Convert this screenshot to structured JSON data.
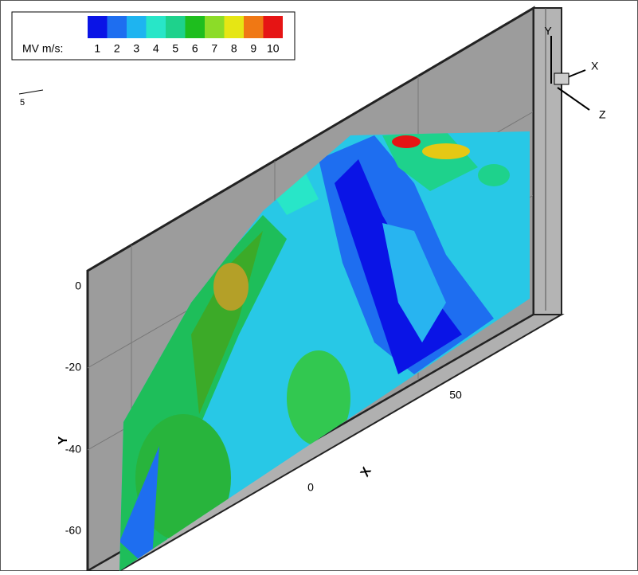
{
  "legend": {
    "label": "MV m/s:",
    "levels": [
      {
        "value": 1,
        "color": "#0a14e6"
      },
      {
        "value": 2,
        "color": "#1e6ef0"
      },
      {
        "value": 3,
        "color": "#1eb4f0"
      },
      {
        "value": 4,
        "color": "#28e6c8"
      },
      {
        "value": 5,
        "color": "#1ed28c"
      },
      {
        "value": 6,
        "color": "#1ebe1e"
      },
      {
        "value": 7,
        "color": "#8cdc28"
      },
      {
        "value": 8,
        "color": "#e6e614"
      },
      {
        "value": 9,
        "color": "#f07814"
      },
      {
        "value": 10,
        "color": "#e61414"
      }
    ]
  },
  "reference_vector": {
    "label": "5"
  },
  "axes": {
    "y_label": "Y",
    "x_label": "X",
    "y_ticks": [
      0,
      -20,
      -40,
      -60
    ],
    "x_ticks": [
      0,
      50
    ]
  },
  "triad": {
    "y": "Y",
    "x": "X",
    "z": "Z"
  }
}
